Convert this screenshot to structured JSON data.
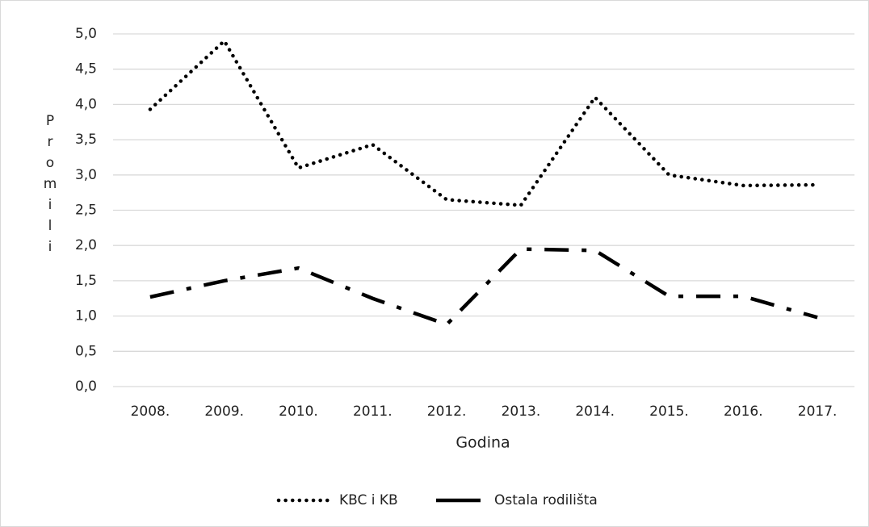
{
  "chart_data": {
    "type": "line",
    "x_label": "Godina",
    "y_label": "Promili",
    "categories": [
      "2008.",
      "2009.",
      "2010.",
      "2011.",
      "2012.",
      "2013.",
      "2014.",
      "2015.",
      "2016.",
      "2017."
    ],
    "series": [
      {
        "name": "KBC i KB",
        "color": "#000000",
        "dash": "dotted",
        "values": [
          3.93,
          4.9,
          3.1,
          3.43,
          2.65,
          2.57,
          4.1,
          3.0,
          2.85,
          2.86
        ]
      },
      {
        "name": "Ostala rodilišta",
        "color": "#000000",
        "dash": "dashdot",
        "values": [
          1.27,
          1.5,
          1.68,
          1.25,
          0.88,
          1.95,
          1.93,
          1.28,
          1.28,
          0.98
        ]
      }
    ],
    "ylim": [
      0,
      5
    ],
    "yticks": [
      {
        "value": 0,
        "label": "0,0"
      },
      {
        "value": 0.5,
        "label": "0,5"
      },
      {
        "value": 1,
        "label": "1,0"
      },
      {
        "value": 1.5,
        "label": "1,5"
      },
      {
        "value": 2,
        "label": "2,0"
      },
      {
        "value": 2.5,
        "label": "2,5"
      },
      {
        "value": 3,
        "label": "3,0"
      },
      {
        "value": 3.5,
        "label": "3,5"
      },
      {
        "value": 4,
        "label": "4,0"
      },
      {
        "value": 4.5,
        "label": "4,5"
      },
      {
        "value": 5,
        "label": "5,0"
      }
    ],
    "grid": true,
    "legend": "bottom"
  }
}
